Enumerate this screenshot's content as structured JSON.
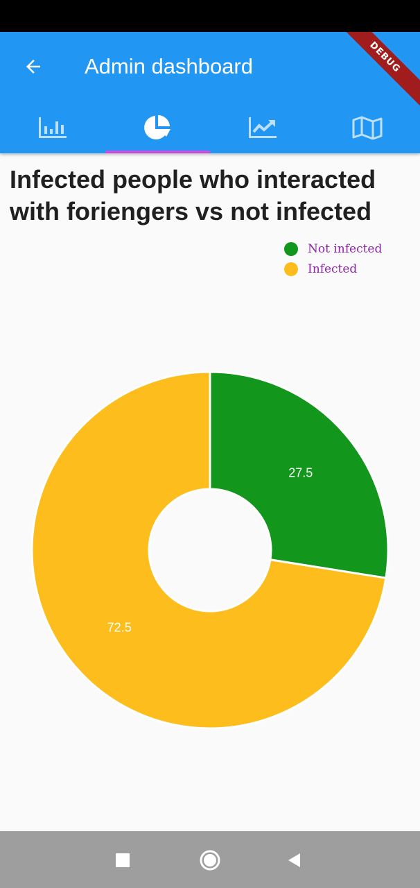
{
  "app_bar": {
    "title": "Admin dashboard",
    "back_icon": "arrow-back-icon",
    "debug_label": "DEBUG",
    "color": "#2196f3"
  },
  "tabs": [
    {
      "icon": "bar-chart-icon",
      "selected": false
    },
    {
      "icon": "pie-chart-icon",
      "selected": true
    },
    {
      "icon": "trending-up-icon",
      "selected": false
    },
    {
      "icon": "map-icon",
      "selected": false
    }
  ],
  "chart_data": {
    "type": "pie",
    "title": "Infected people who interacted with foriengers vs not infected",
    "categories": [
      "Not infected",
      "Infected"
    ],
    "values": [
      27.5,
      72.5
    ],
    "colors": [
      "#13961c",
      "#fdbd1d"
    ],
    "data_labels": [
      "27.5",
      "72.5"
    ],
    "donut": true,
    "legend_position": "top-right"
  },
  "nav": {
    "icons": [
      "square-recent-icon",
      "circle-home-icon",
      "triangle-back-icon"
    ]
  }
}
